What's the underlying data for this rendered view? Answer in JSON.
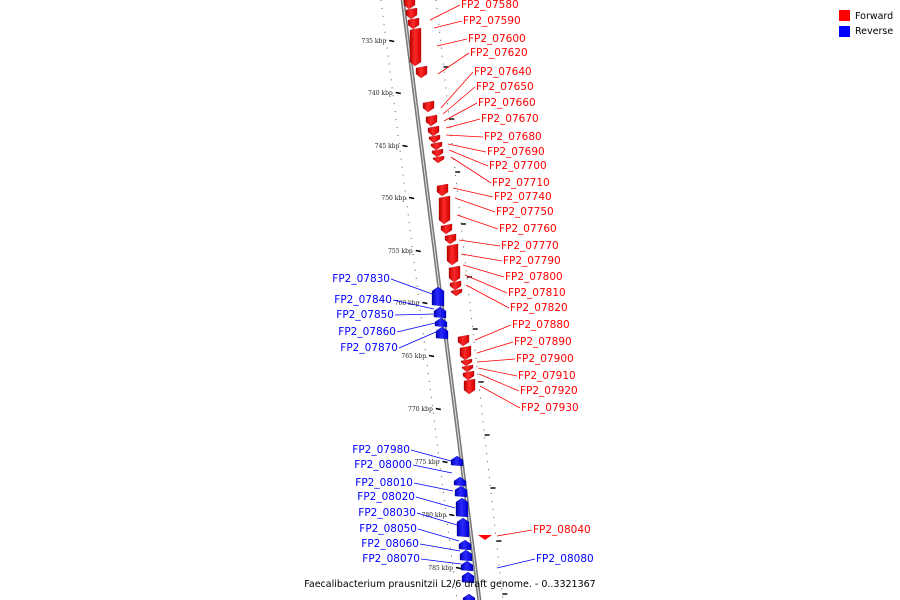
{
  "caption": "Faecalibacterium prausnitzii L2/6 draft genome. - 0..3321367",
  "colors": {
    "forward": "#ff0000",
    "reverse": "#0000ff",
    "axis": "#8a8a8a",
    "tick": "#000000"
  },
  "legend": [
    {
      "label": "Forward",
      "color": "#ff0000"
    },
    {
      "label": "Reverse",
      "color": "#0000ff"
    }
  ],
  "ticks": [
    "735 kbp",
    "740 kbp",
    "745 kbp",
    "750 kbp",
    "755 kbp",
    "760 kbp",
    "765 kbp",
    "770 kbp",
    "775 kbp",
    "780 kbp",
    "785 kbp"
  ],
  "forward_genes": [
    "FP2_07580",
    "FP2_07590",
    "FP2_07600",
    "FP2_07620",
    "FP2_07640",
    "FP2_07650",
    "FP2_07660",
    "FP2_07670",
    "FP2_07680",
    "FP2_07690",
    "FP2_07700",
    "FP2_07710",
    "FP2_07740",
    "FP2_07750",
    "FP2_07760",
    "FP2_07770",
    "FP2_07790",
    "FP2_07800",
    "FP2_07810",
    "FP2_07820",
    "FP2_07880",
    "FP2_07890",
    "FP2_07900",
    "FP2_07910",
    "FP2_07920",
    "FP2_07930",
    "FP2_08040"
  ],
  "reverse_genes": [
    "FP2_07830",
    "FP2_07840",
    "FP2_07850",
    "FP2_07860",
    "FP2_07870",
    "FP2_07980",
    "FP2_08000",
    "FP2_08010",
    "FP2_08020",
    "FP2_08030",
    "FP2_08050",
    "FP2_08060",
    "FP2_08070",
    "FP2_08080"
  ]
}
